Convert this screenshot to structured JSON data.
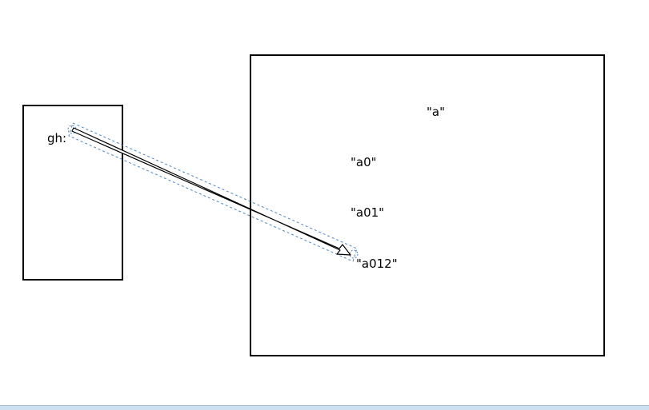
{
  "pointer_label": "gh:",
  "strings": [
    "\"a\"",
    "\"a0\"",
    "\"a01\"",
    "\"a012\""
  ],
  "colors": {
    "box_border": "#000000",
    "arrow_fill": "#ffffff",
    "arrow_stroke": "#000000",
    "selection_dash": "#4a86c8"
  }
}
